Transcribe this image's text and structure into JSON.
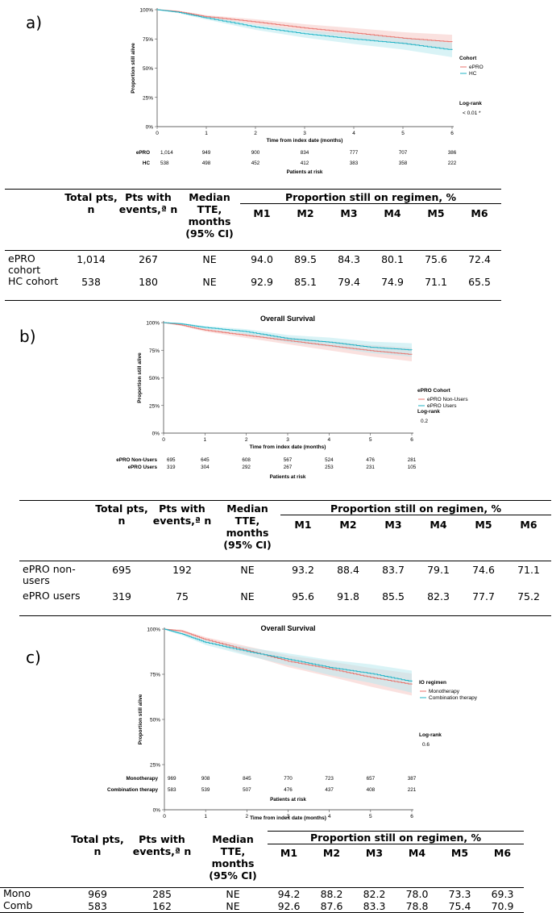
{
  "colors": {
    "red": "#e8736c",
    "cyan": "#1fb3c6",
    "red_band": "#f6c9c5",
    "cyan_band": "#b9e9ef"
  },
  "panels": [
    {
      "label": "a)",
      "chart_data": {
        "type": "line",
        "title": "",
        "xlabel": "Time from index date (months)",
        "ylabel": "Proportion still alive",
        "xlim": [
          0,
          6
        ],
        "ylim": [
          0,
          100
        ],
        "xticks": [
          "0",
          "1",
          "2",
          "3",
          "4",
          "5",
          "6"
        ],
        "yticks": [
          "0%",
          "25%",
          "50%",
          "75%",
          "100%"
        ],
        "legend_title": "Cohort",
        "legend_position": "right",
        "series": [
          {
            "name": "ePRO",
            "color": "#e8736c",
            "x": [
              0,
              0.4,
              1,
              2,
              3,
              4,
              5,
              6
            ],
            "y": [
              100,
              98.5,
              94.0,
              89.5,
              84.3,
              80.1,
              75.6,
              72.4
            ]
          },
          {
            "name": "HC",
            "color": "#1fb3c6",
            "x": [
              0,
              0.4,
              1,
              2,
              3,
              4,
              5,
              6
            ],
            "y": [
              100,
              98,
              92.9,
              85.1,
              79.4,
              74.9,
              71.1,
              65.5
            ]
          }
        ],
        "logrank_label": "Log-rank",
        "logrank_value": "< 0.01 *",
        "risk_title": "Patients at risk",
        "risk_rows": [
          {
            "label": "ePRO",
            "values": [
              "1,014",
              "949",
              "900",
              "834",
              "777",
              "707",
              "386"
            ]
          },
          {
            "label": "HC",
            "values": [
              "538",
              "498",
              "452",
              "412",
              "383",
              "358",
              "222"
            ]
          }
        ]
      },
      "table": {
        "header": {
          "total": "Total pts, n",
          "events": "Pts with events,ª n",
          "median": "Median TTE, months (95% CI)",
          "prop": "Proportion still on regimen, %",
          "months": [
            "M1",
            "M2",
            "M3",
            "M4",
            "M5",
            "M6"
          ]
        },
        "rows": [
          {
            "label": "ePRO cohort",
            "total": "1,014",
            "events": "267",
            "median": "NE",
            "vals": [
              "94.0",
              "89.5",
              "84.3",
              "80.1",
              "75.6",
              "72.4"
            ]
          },
          {
            "label": "HC cohort",
            "total": "538",
            "events": "180",
            "median": "NE",
            "vals": [
              "92.9",
              "85.1",
              "79.4",
              "74.9",
              "71.1",
              "65.5"
            ]
          }
        ]
      }
    },
    {
      "label": "b)",
      "chart_data": {
        "type": "line",
        "title": "Overall Survival",
        "xlabel": "Time from index date (months)",
        "ylabel": "Proportion still alive",
        "xlim": [
          0,
          6
        ],
        "ylim": [
          0,
          100
        ],
        "xticks": [
          "0",
          "1",
          "2",
          "3",
          "4",
          "5",
          "6"
        ],
        "yticks": [
          "0%",
          "25%",
          "50%",
          "75%",
          "100%"
        ],
        "legend_title": "ePRO Cohort",
        "legend_position": "right",
        "series": [
          {
            "name": "ePRO Non-Users",
            "color": "#e8736c",
            "x": [
              0,
              0.4,
              1,
              2,
              3,
              4,
              5,
              6
            ],
            "y": [
              100,
              98,
              93.2,
              88.4,
              83.7,
              79.1,
              74.6,
              71.1
            ]
          },
          {
            "name": "ePRO Users",
            "color": "#1fb3c6",
            "x": [
              0,
              0.4,
              1,
              2,
              3,
              4,
              5,
              6
            ],
            "y": [
              100,
              99,
              95.6,
              91.8,
              85.5,
              82.3,
              77.7,
              75.2
            ]
          }
        ],
        "logrank_label": "Log-rank",
        "logrank_value": "0.2",
        "risk_title": "Patients at risk",
        "risk_rows": [
          {
            "label": "ePRO Non-Users",
            "values": [
              "695",
              "645",
              "608",
              "567",
              "524",
              "476",
              "281"
            ]
          },
          {
            "label": "ePRO Users",
            "values": [
              "319",
              "304",
              "292",
              "267",
              "253",
              "231",
              "105"
            ]
          }
        ]
      },
      "table": {
        "header": {
          "total": "Total pts, n",
          "events": "Pts with events,ª n",
          "median": "Median TTE, months (95% CI)",
          "prop": "Proportion still on regimen, %",
          "months": [
            "M1",
            "M2",
            "M3",
            "M4",
            "M5",
            "M6"
          ]
        },
        "rows": [
          {
            "label": "ePRO non-users",
            "total": "695",
            "events": "192",
            "median": "NE",
            "vals": [
              "93.2",
              "88.4",
              "83.7",
              "79.1",
              "74.6",
              "71.1"
            ]
          },
          {
            "label": "ePRO users",
            "total": "319",
            "events": "75",
            "median": "NE",
            "vals": [
              "95.6",
              "91.8",
              "85.5",
              "82.3",
              "77.7",
              "75.2"
            ]
          }
        ]
      }
    },
    {
      "label": "c)",
      "chart_data": {
        "type": "line",
        "title": "Overall Survival",
        "xlabel": "Time from index date (months)",
        "ylabel": "Proportion still alive",
        "xlim": [
          0,
          6
        ],
        "ylim": [
          0,
          100
        ],
        "xticks": [
          "0",
          "1",
          "2",
          "3",
          "4",
          "5",
          "6"
        ],
        "yticks": [
          "0%",
          "25%",
          "50%",
          "75%",
          "100%"
        ],
        "legend_title": "IO regimen",
        "legend_position": "right",
        "series": [
          {
            "name": "Monotherapy",
            "color": "#e8736c",
            "x": [
              0,
              0.4,
              1,
              2,
              3,
              4,
              5,
              6
            ],
            "y": [
              100,
              99,
              94.2,
              88.2,
              82.2,
              78.0,
              73.3,
              69.3
            ]
          },
          {
            "name": "Combination therapy",
            "color": "#1fb3c6",
            "x": [
              0,
              0.4,
              1,
              2,
              3,
              4,
              5,
              6
            ],
            "y": [
              100,
              97.5,
              92.6,
              87.6,
              83.3,
              78.8,
              75.4,
              70.9
            ]
          }
        ],
        "logrank_label": "Log-rank",
        "logrank_value": "0.6",
        "risk_title": "Patients at risk",
        "risk_rows": [
          {
            "label": "Monotherapy",
            "values": [
              "969",
              "908",
              "845",
              "770",
              "723",
              "657",
              "387"
            ]
          },
          {
            "label": "Combination therapy",
            "values": [
              "583",
              "539",
              "507",
              "476",
              "437",
              "408",
              "221"
            ]
          }
        ]
      },
      "table": {
        "header": {
          "total": "Total pts, n",
          "events": "Pts with events,ª n",
          "median": "Median TTE, months (95% CI)",
          "prop": "Proportion still on regimen, %",
          "months": [
            "M1",
            "M2",
            "M3",
            "M4",
            "M5",
            "M6"
          ]
        },
        "rows": [
          {
            "label": "Mono",
            "total": "969",
            "events": "285",
            "median": "NE",
            "vals": [
              "94.2",
              "88.2",
              "82.2",
              "78.0",
              "73.3",
              "69.3"
            ]
          },
          {
            "label": "Comb",
            "total": "583",
            "events": "162",
            "median": "NE",
            "vals": [
              "92.6",
              "87.6",
              "83.3",
              "78.8",
              "75.4",
              "70.9"
            ]
          }
        ]
      }
    }
  ]
}
